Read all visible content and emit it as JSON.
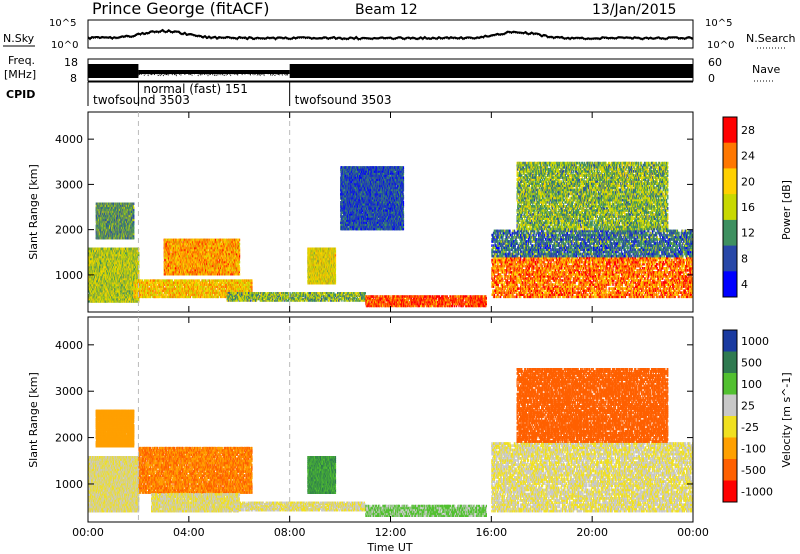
{
  "header": {
    "station": "Prince George (fitACF)",
    "beam": "Beam 12",
    "date": "13/Jan/2015"
  },
  "panels": {
    "sky_label": "N.Sky",
    "search_label": "N.Search",
    "freq_label_1": "Freq.",
    "freq_label_2": "[MHz]",
    "nave_label": "Nave",
    "cpid_label": "CPID",
    "sky_ticks": [
      "10^5",
      "10^0"
    ],
    "freq_ticks": [
      "18",
      "8"
    ],
    "nave_ticks": [
      "60",
      "0"
    ],
    "cpid_modes": [
      {
        "label": "twofsound 3503",
        "start_h": 0,
        "end_h": 2
      },
      {
        "label": "normal (fast) 151",
        "start_h": 2,
        "end_h": 8
      },
      {
        "label": "twofsound 3503",
        "start_h": 8,
        "end_h": 24
      }
    ]
  },
  "chart_data": [
    {
      "type": "heatmap",
      "title": "",
      "xlabel": "",
      "ylabel": "Slant Range [km]",
      "xlim": [
        0,
        24
      ],
      "ylim": [
        180,
        4600
      ],
      "yticks": [
        1000,
        2000,
        3000,
        4000
      ],
      "colorbar": {
        "label": "Power [dB]",
        "ticks": [
          "28",
          "24",
          "20",
          "16",
          "12",
          "8",
          "4"
        ],
        "colors": [
          "#ff0000",
          "#ff7700",
          "#ffd000",
          "#c8d800",
          "#3e9060",
          "#2848a8",
          "#0000ff"
        ]
      },
      "regions": [
        {
          "t0": 0.0,
          "t1": 2.0,
          "r0": 400,
          "r1": 1600,
          "value": 16
        },
        {
          "t0": 0.3,
          "t1": 1.8,
          "r0": 1800,
          "r1": 2600,
          "value": 12
        },
        {
          "t0": 1.8,
          "t1": 6.5,
          "r0": 500,
          "r1": 900,
          "value": 20
        },
        {
          "t0": 3.0,
          "t1": 6.0,
          "r0": 1000,
          "r1": 1800,
          "value": 22
        },
        {
          "t0": 5.5,
          "t1": 11.0,
          "r0": 420,
          "r1": 620,
          "value": 14
        },
        {
          "t0": 8.7,
          "t1": 9.8,
          "r0": 800,
          "r1": 1600,
          "value": 18
        },
        {
          "t0": 11.0,
          "t1": 15.8,
          "r0": 300,
          "r1": 550,
          "value": 26
        },
        {
          "t0": 10.0,
          "t1": 12.5,
          "r0": 2000,
          "r1": 3400,
          "value": 8
        },
        {
          "t0": 16.0,
          "t1": 24.0,
          "r0": 500,
          "r1": 1400,
          "value": 24
        },
        {
          "t0": 16.0,
          "t1": 24.0,
          "r0": 1400,
          "r1": 2000,
          "value": 10
        },
        {
          "t0": 17.0,
          "t1": 23.0,
          "r0": 2000,
          "r1": 3500,
          "value": 14
        }
      ]
    },
    {
      "type": "heatmap",
      "title": "",
      "xlabel": "Time UT",
      "ylabel": "Slant Range [km]",
      "xlim": [
        0,
        24
      ],
      "ylim": [
        180,
        4600
      ],
      "yticks": [
        1000,
        2000,
        3000,
        4000
      ],
      "xticks": [
        "00:00",
        "04:00",
        "08:00",
        "12:00",
        "16:00",
        "20:00",
        "00:00"
      ],
      "colorbar": {
        "label": "Velocity [m s^-1]",
        "ticks": [
          "1000",
          "500",
          "100",
          "25",
          "-25",
          "-100",
          "-500",
          "-1000"
        ],
        "colors": [
          "#1a3aa0",
          "#2f7a50",
          "#52c030",
          "#c8c8c8",
          "#f0e020",
          "#ffa000",
          "#ff6000",
          "#ff0000"
        ]
      },
      "regions": [
        {
          "t0": 0.0,
          "t1": 2.0,
          "r0": 400,
          "r1": 1600,
          "value": 0
        },
        {
          "t0": 0.3,
          "t1": 1.8,
          "r0": 1800,
          "r1": 2600,
          "value": -150
        },
        {
          "t0": 2.0,
          "t1": 6.5,
          "r0": 800,
          "r1": 1800,
          "value": -300
        },
        {
          "t0": 2.5,
          "t1": 6.0,
          "r0": 400,
          "r1": 800,
          "value": 0
        },
        {
          "t0": 5.5,
          "t1": 11.0,
          "r0": 420,
          "r1": 620,
          "value": 0
        },
        {
          "t0": 8.7,
          "t1": 9.8,
          "r0": 800,
          "r1": 1600,
          "value": 300
        },
        {
          "t0": 11.0,
          "t1": 15.8,
          "r0": 300,
          "r1": 550,
          "value": 80
        },
        {
          "t0": 16.0,
          "t1": 24.0,
          "r0": 400,
          "r1": 1900,
          "value": 0
        },
        {
          "t0": 17.0,
          "t1": 23.0,
          "r0": 1900,
          "r1": 3500,
          "value": -600
        }
      ]
    }
  ]
}
